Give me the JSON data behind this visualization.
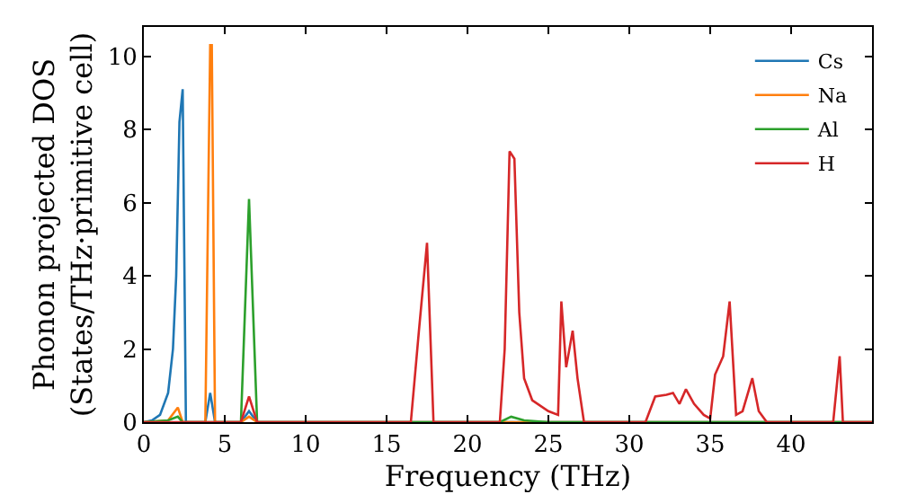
{
  "chart_data": {
    "type": "line",
    "xlabel": "Frequency (THz)",
    "ylabel": "Phonon projected DOS\n(States/THz·primitive cell)",
    "xlim": [
      0,
      45
    ],
    "ylim": [
      0,
      10.8
    ],
    "xticks": [
      0,
      5,
      10,
      15,
      20,
      25,
      30,
      35,
      40
    ],
    "yticks": [
      0,
      2,
      4,
      6,
      8,
      10
    ],
    "grid": false,
    "legend": "top right",
    "marker": "none",
    "line_style": "solid",
    "series": [
      {
        "name": "Cs",
        "color": "#1f77b4",
        "x": [
          0,
          0.5,
          1,
          1.5,
          1.8,
          2,
          2.2,
          2.4,
          2.6,
          3,
          3.8,
          4.1,
          4.4,
          6,
          6.5,
          7,
          45
        ],
        "values": [
          0,
          0.05,
          0.2,
          0.8,
          2,
          4,
          8.2,
          9.1,
          0,
          0,
          0,
          0.8,
          0,
          0,
          0.3,
          0,
          0
        ]
      },
      {
        "name": "Na",
        "color": "#ff7f0e",
        "x": [
          0,
          1.5,
          2.1,
          2.4,
          3.8,
          4.1,
          4.2,
          4.4,
          6,
          6.5,
          7,
          45
        ],
        "values": [
          0,
          0.05,
          0.4,
          0,
          0,
          10.3,
          10.3,
          0,
          0,
          0.15,
          0,
          0
        ]
      },
      {
        "name": "Al",
        "color": "#2ca02c",
        "x": [
          0,
          1.5,
          2.1,
          2.4,
          6,
          6.5,
          7,
          22,
          22.7,
          23.5,
          25,
          45
        ],
        "values": [
          0,
          0.05,
          0.15,
          0,
          0,
          6.1,
          0,
          0,
          0.15,
          0.05,
          0,
          0
        ]
      },
      {
        "name": "H",
        "color": "#d62728",
        "x": [
          0,
          6,
          6.5,
          7,
          16.5,
          17,
          17.5,
          17.9,
          22,
          22.3,
          22.6,
          22.9,
          23.2,
          23.5,
          24,
          25,
          25.6,
          25.8,
          26.1,
          26.5,
          26.8,
          27.2,
          31,
          31.6,
          32.3,
          32.7,
          33.1,
          33.5,
          34,
          34.6,
          35,
          35.3,
          35.8,
          36.2,
          36.6,
          37,
          37.6,
          38,
          38.5,
          42.6,
          43,
          43.2,
          45
        ],
        "values": [
          0,
          0,
          0.7,
          0,
          0,
          2.5,
          4.9,
          0,
          0,
          2,
          7.4,
          7.2,
          3,
          1.2,
          0.6,
          0.3,
          0.2,
          3.3,
          1.5,
          2.5,
          1.2,
          0,
          0,
          0.7,
          0.75,
          0.8,
          0.5,
          0.9,
          0.5,
          0.2,
          0.1,
          1.3,
          1.8,
          3.3,
          0.2,
          0.3,
          1.2,
          0.3,
          0,
          0,
          1.8,
          0,
          0
        ]
      }
    ]
  }
}
